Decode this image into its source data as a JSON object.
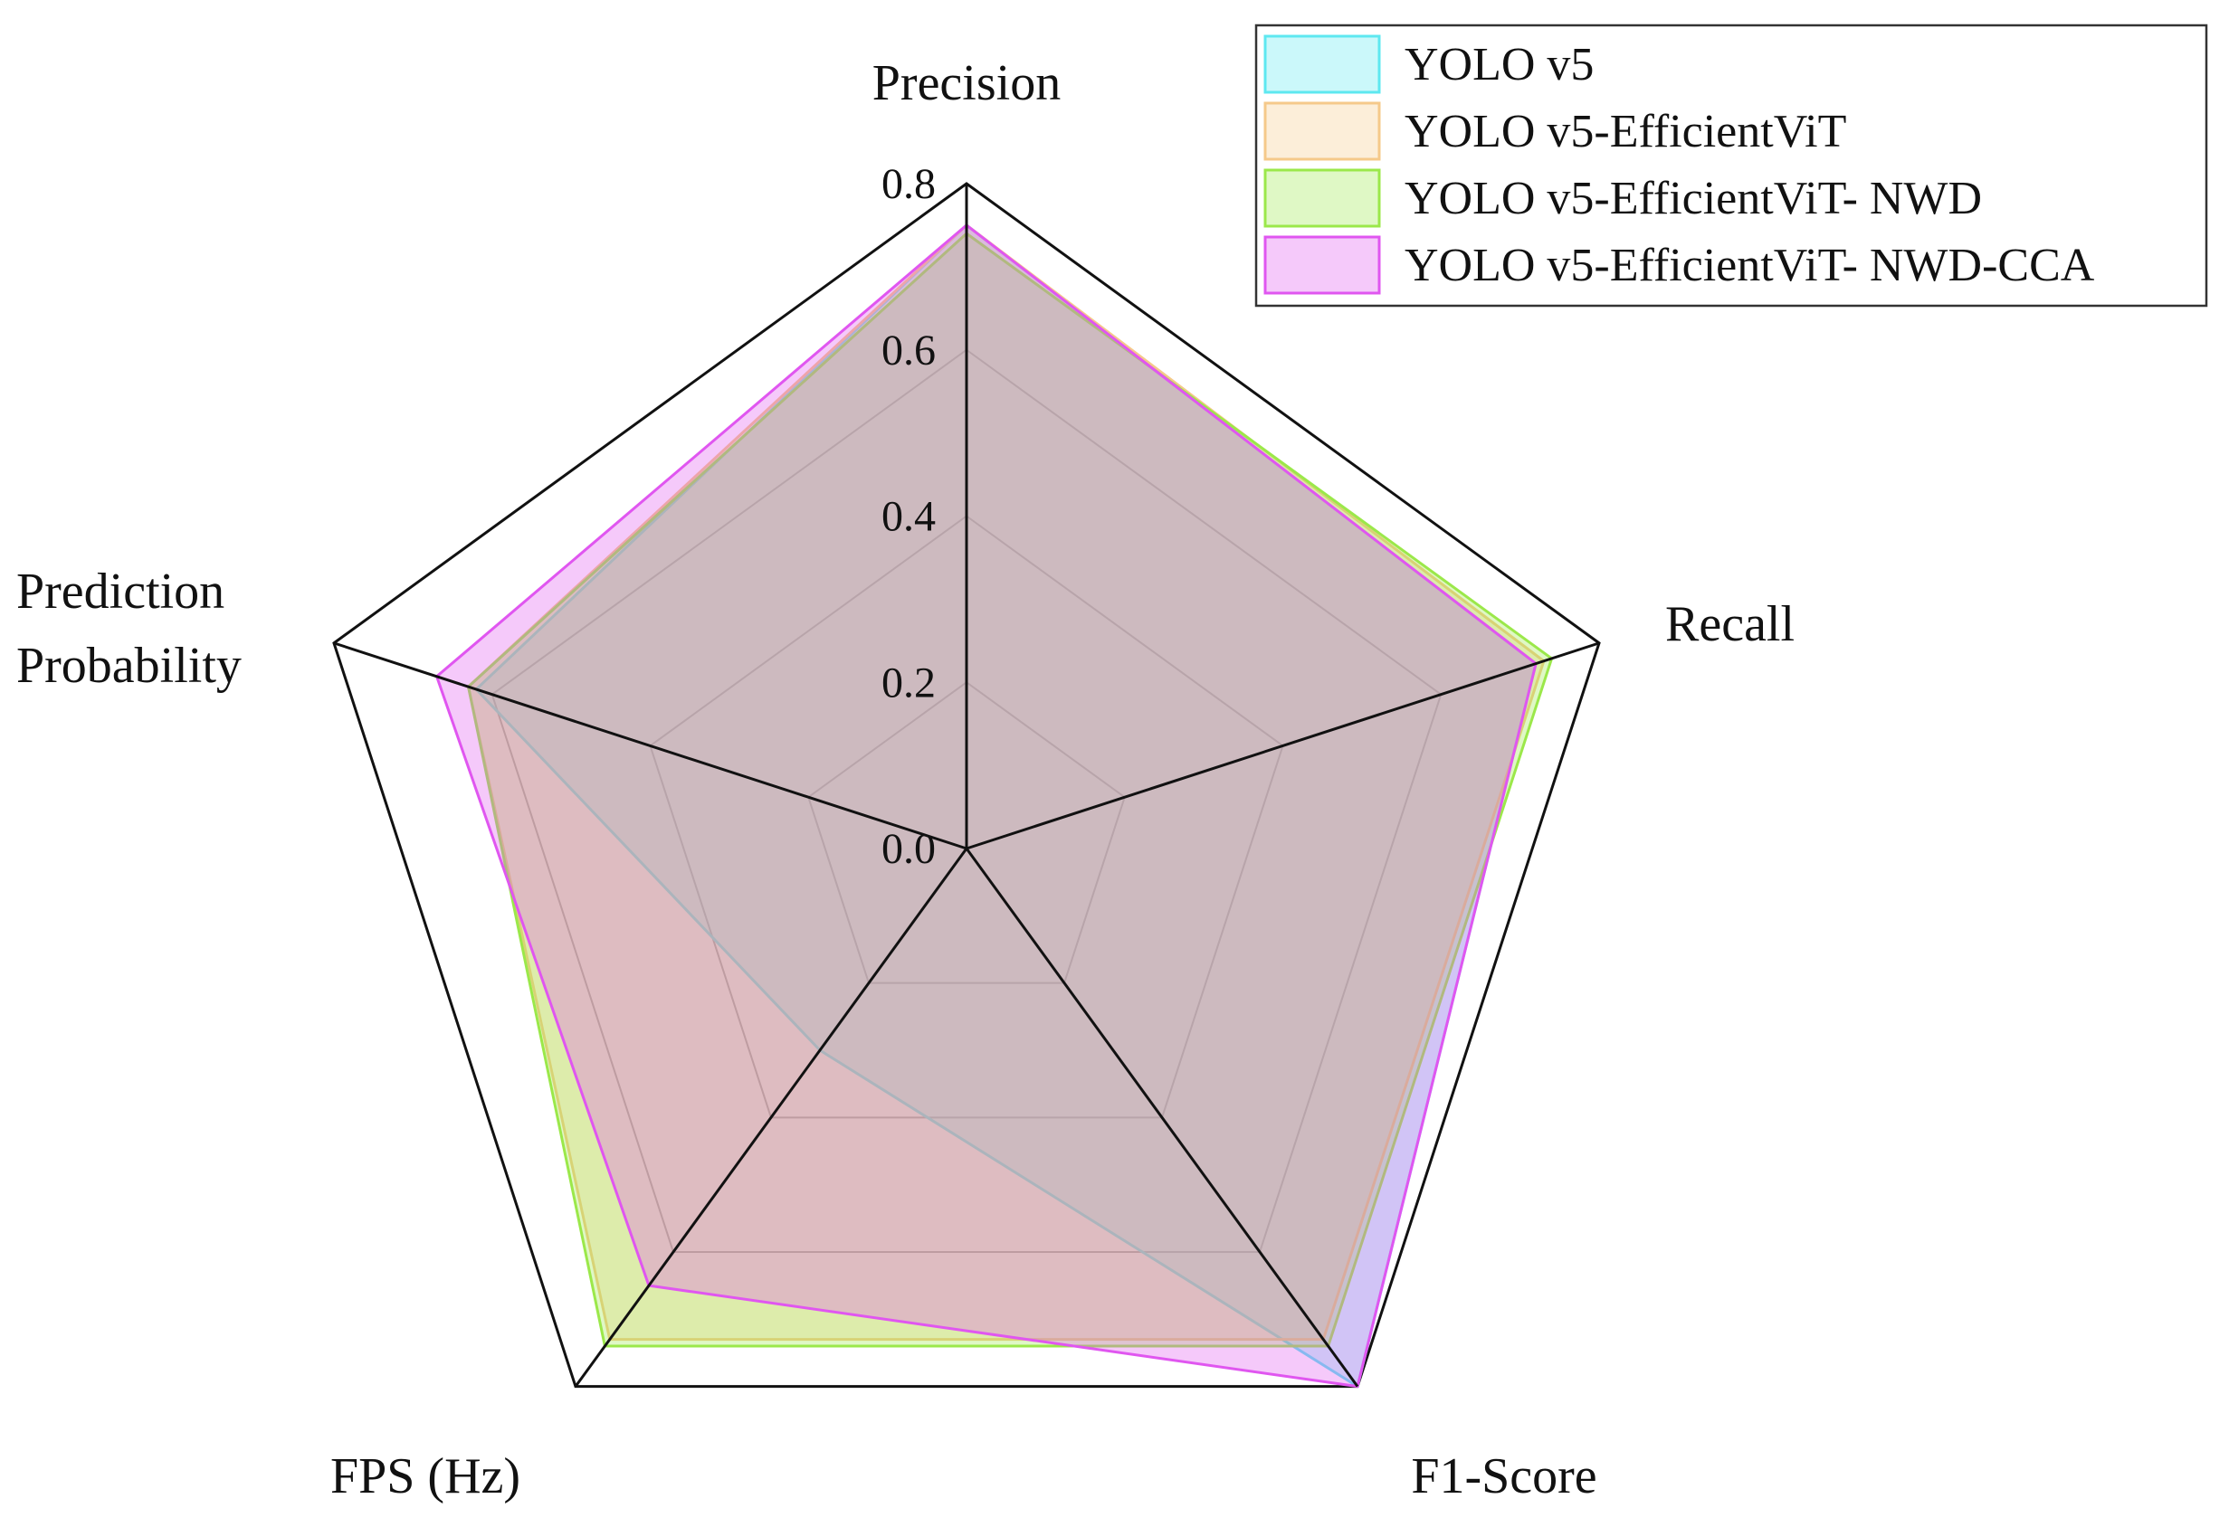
{
  "chart_data": {
    "type": "radar",
    "axes": [
      "Precision",
      "Recall",
      "F1-Score",
      "FPS (Hz)",
      "Prediction Probability"
    ],
    "axis_label_lines": [
      [
        "Precision"
      ],
      [
        "Recall"
      ],
      [
        "F1-Score"
      ],
      [
        "FPS (Hz)"
      ],
      [
        "Prediction",
        "Probability"
      ]
    ],
    "rlim": [
      0,
      0.8
    ],
    "ticks": [
      "0.0",
      "0.2",
      "0.4",
      "0.6",
      "0.8"
    ],
    "tick_values": [
      0,
      0.2,
      0.4,
      0.6,
      0.8
    ],
    "legend_position": "top-right",
    "series": [
      {
        "name": "YOLO v5",
        "color": "#5ee8f0",
        "values": [
          0.75,
          0.72,
          0.8,
          0.3,
          0.62
        ]
      },
      {
        "name": "YOLO v5-EfficientViT",
        "color": "#f5c98a",
        "values": [
          0.75,
          0.73,
          0.73,
          0.73,
          0.63
        ]
      },
      {
        "name": "YOLO v5-EfficientViT- NWD",
        "color": "#9be84a",
        "values": [
          0.74,
          0.74,
          0.74,
          0.74,
          0.63
        ]
      },
      {
        "name": "YOLO v5-EfficientViT- NWD-CCA",
        "color": "#e056f0",
        "values": [
          0.75,
          0.72,
          0.8,
          0.65,
          0.67
        ]
      }
    ]
  }
}
